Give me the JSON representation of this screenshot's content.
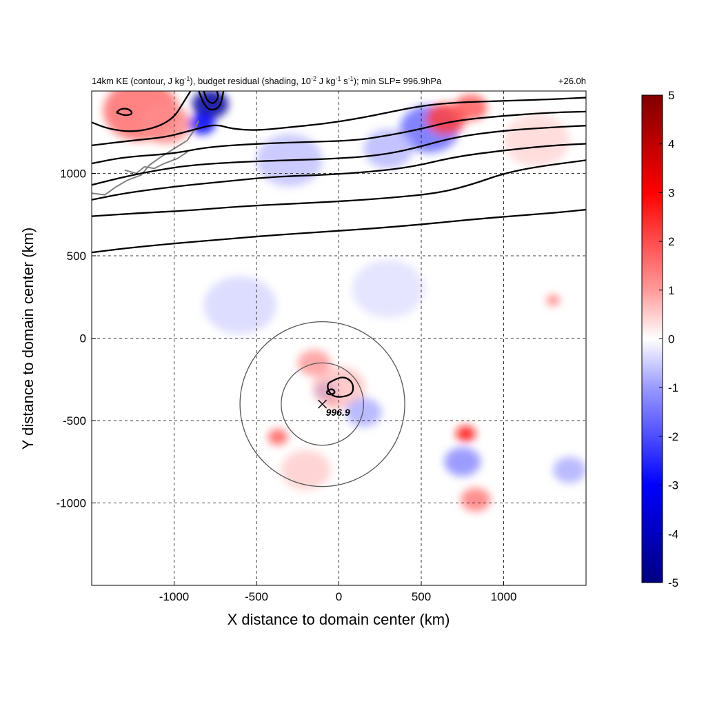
{
  "chart_data": {
    "type": "heatmap",
    "title": {
      "prefix": "14km KE (contour, J kg",
      "sup1": "-1",
      "mid1": "), budget residual (shading, 10",
      "sup2": "-2",
      "mid2": " J kg",
      "sup3": "-1",
      "mid3": " s",
      "sup4": "-1",
      "suffix": "); min SLP= 996.9hPa"
    },
    "time_label": "+26.0h",
    "xlabel": "X distance to domain center (km)",
    "ylabel": "Y distance to domain center (km)",
    "xlim": [
      -1500,
      1500
    ],
    "ylim": [
      -1500,
      1500
    ],
    "x_ticks": [
      -1000,
      -500,
      0,
      500,
      1000
    ],
    "x_tick_labels": [
      "-1000",
      "-500",
      "0",
      "500",
      "1000"
    ],
    "y_ticks": [
      -1000,
      -500,
      0,
      500,
      1000
    ],
    "y_tick_labels": [
      "-1000",
      "-500",
      "0",
      "500",
      "1000"
    ],
    "grid": true,
    "colorbar": {
      "range": [
        -5,
        5
      ],
      "ticks": [
        5,
        4,
        3,
        2,
        1,
        0,
        -1,
        -2,
        -3,
        -4,
        -5
      ],
      "tick_labels": [
        "5",
        "4",
        "3",
        "2",
        "1",
        "0",
        "-1",
        "-2",
        "-3",
        "-4",
        "-5"
      ],
      "colors": {
        "max": "#7f0000",
        "high": "#ff0000",
        "mid_high": "#ff9a9a",
        "zero": "#ffffff",
        "mid_low": "#9a9aff",
        "low": "#0000ff",
        "min": "#00007f"
      }
    },
    "storm_center": {
      "x": -100,
      "y": -400,
      "label": "996.9"
    },
    "range_rings_km": [
      250,
      500
    ],
    "ke_contours": [
      {
        "points": [
          [
            -1500,
            520
          ],
          [
            -1300,
            545
          ],
          [
            -1000,
            575
          ],
          [
            -700,
            600
          ],
          [
            -400,
            625
          ],
          [
            -100,
            645
          ],
          [
            200,
            665
          ],
          [
            500,
            690
          ],
          [
            800,
            720
          ],
          [
            1100,
            745
          ],
          [
            1300,
            760
          ],
          [
            1500,
            780
          ]
        ]
      },
      {
        "points": [
          [
            -1500,
            740
          ],
          [
            -1200,
            760
          ],
          [
            -900,
            775
          ],
          [
            -600,
            800
          ],
          [
            -300,
            815
          ],
          [
            0,
            830
          ],
          [
            300,
            850
          ],
          [
            600,
            880
          ],
          [
            800,
            930
          ],
          [
            1000,
            1000
          ],
          [
            1200,
            1040
          ],
          [
            1500,
            1080
          ]
        ]
      },
      {
        "points": [
          [
            -1500,
            840
          ],
          [
            -1300,
            880
          ],
          [
            -1000,
            920
          ],
          [
            -700,
            950
          ],
          [
            -400,
            980
          ],
          [
            -100,
            990
          ],
          [
            200,
            1010
          ],
          [
            450,
            1040
          ],
          [
            700,
            1100
          ],
          [
            1000,
            1140
          ],
          [
            1300,
            1170
          ],
          [
            1500,
            1180
          ]
        ]
      },
      {
        "points": [
          [
            -1500,
            930
          ],
          [
            -1300,
            980
          ],
          [
            -1100,
            1020
          ],
          [
            -900,
            1050
          ],
          [
            -600,
            1070
          ],
          [
            -300,
            1080
          ],
          [
            0,
            1090
          ],
          [
            250,
            1110
          ],
          [
            450,
            1150
          ],
          [
            700,
            1220
          ],
          [
            1000,
            1260
          ],
          [
            1300,
            1280
          ],
          [
            1500,
            1290
          ]
        ]
      },
      {
        "points": [
          [
            -1500,
            1060
          ],
          [
            -1300,
            1100
          ],
          [
            -1000,
            1120
          ],
          [
            -800,
            1160
          ],
          [
            -500,
            1180
          ],
          [
            -200,
            1190
          ],
          [
            100,
            1200
          ],
          [
            300,
            1230
          ],
          [
            500,
            1270
          ],
          [
            700,
            1320
          ],
          [
            1000,
            1350
          ],
          [
            1300,
            1370
          ],
          [
            1500,
            1375
          ]
        ]
      },
      {
        "points": [
          [
            -1500,
            1170
          ],
          [
            -1250,
            1200
          ],
          [
            -1050,
            1220
          ],
          [
            -900,
            1260
          ],
          [
            -750,
            1300
          ],
          [
            -650,
            1270
          ],
          [
            -500,
            1260
          ],
          [
            -300,
            1280
          ],
          [
            -100,
            1300
          ],
          [
            100,
            1330
          ],
          [
            300,
            1370
          ],
          [
            500,
            1410
          ],
          [
            700,
            1430
          ],
          [
            1000,
            1440
          ],
          [
            1300,
            1450
          ],
          [
            1500,
            1460
          ]
        ]
      },
      {
        "points": [
          [
            -1500,
            1310
          ],
          [
            -1400,
            1270
          ],
          [
            -1250,
            1250
          ],
          [
            -1100,
            1280
          ],
          [
            -1000,
            1340
          ],
          [
            -950,
            1420
          ],
          [
            -900,
            1500
          ]
        ]
      },
      {
        "points": [
          [
            -1350,
            1370
          ],
          [
            -1300,
            1350
          ],
          [
            -1250,
            1360
          ],
          [
            -1270,
            1390
          ],
          [
            -1320,
            1395
          ],
          [
            -1350,
            1370
          ]
        ]
      },
      {
        "points": [
          [
            -850,
            1500
          ],
          [
            -820,
            1420
          ],
          [
            -780,
            1380
          ],
          [
            -720,
            1400
          ],
          [
            -700,
            1500
          ]
        ]
      },
      {
        "points": [
          [
            -820,
            1500
          ],
          [
            -800,
            1440
          ],
          [
            -760,
            1420
          ],
          [
            -730,
            1460
          ],
          [
            -740,
            1500
          ]
        ]
      },
      {
        "points": [
          [
            -60,
            -270
          ],
          [
            20,
            -230
          ],
          [
            80,
            -260
          ],
          [
            90,
            -320
          ],
          [
            60,
            -350
          ],
          [
            -20,
            -360
          ],
          [
            -60,
            -330
          ],
          [
            -70,
            -290
          ],
          [
            -60,
            -270
          ]
        ]
      },
      {
        "points": [
          [
            -70,
            -320
          ],
          [
            -40,
            -305
          ],
          [
            -20,
            -330
          ],
          [
            -50,
            -345
          ],
          [
            -75,
            -335
          ],
          [
            -70,
            -320
          ]
        ]
      }
    ],
    "coastlines": [
      {
        "points": [
          [
            -1500,
            880
          ],
          [
            -1420,
            870
          ],
          [
            -1350,
            920
          ],
          [
            -1280,
            960
          ],
          [
            -1200,
            990
          ],
          [
            -1150,
            1050
          ],
          [
            -1080,
            1100
          ],
          [
            -1000,
            1150
          ],
          [
            -920,
            1200
          ],
          [
            -880,
            1260
          ],
          [
            -850,
            1320
          ]
        ]
      },
      {
        "points": [
          [
            -1300,
            1020
          ],
          [
            -1230,
            1000
          ],
          [
            -1180,
            1040
          ],
          [
            -1120,
            1030
          ],
          [
            -1060,
            1060
          ],
          [
            -980,
            1090
          ],
          [
            -920,
            1130
          ]
        ]
      }
    ],
    "residual_patches": [
      {
        "x": -1200,
        "y": 1380,
        "r": 230,
        "value": 1.6
      },
      {
        "x": -1050,
        "y": 1300,
        "r": 150,
        "value": 1.2
      },
      {
        "x": -780,
        "y": 1420,
        "r": 110,
        "value": -4.5
      },
      {
        "x": -830,
        "y": 1300,
        "r": 80,
        "value": -3.0
      },
      {
        "x": 550,
        "y": 1270,
        "r": 180,
        "value": -1.6
      },
      {
        "x": 650,
        "y": 1330,
        "r": 120,
        "value": 2.2
      },
      {
        "x": 800,
        "y": 1400,
        "r": 100,
        "value": 1.8
      },
      {
        "x": 300,
        "y": 1150,
        "r": 150,
        "value": -0.7
      },
      {
        "x": -300,
        "y": 1080,
        "r": 200,
        "value": -0.6
      },
      {
        "x": 1200,
        "y": 1200,
        "r": 200,
        "value": 0.4
      },
      {
        "x": -80,
        "y": -320,
        "r": 70,
        "value": -3.5
      },
      {
        "x": -40,
        "y": -390,
        "r": 40,
        "value": 3.5
      },
      {
        "x": 0,
        "y": -300,
        "r": 160,
        "value": 0.6
      },
      {
        "x": -150,
        "y": -150,
        "r": 100,
        "value": 1.0
      },
      {
        "x": 150,
        "y": -450,
        "r": 110,
        "value": -0.8
      },
      {
        "x": -370,
        "y": -600,
        "r": 60,
        "value": 1.8
      },
      {
        "x": 770,
        "y": -580,
        "r": 60,
        "value": 2.8
      },
      {
        "x": 830,
        "y": -980,
        "r": 90,
        "value": 1.4
      },
      {
        "x": 750,
        "y": -750,
        "r": 110,
        "value": -1.2
      },
      {
        "x": 1300,
        "y": 230,
        "r": 40,
        "value": 1.5
      },
      {
        "x": 1400,
        "y": -800,
        "r": 100,
        "value": -0.8
      },
      {
        "x": -600,
        "y": 200,
        "r": 220,
        "value": -0.4
      },
      {
        "x": 300,
        "y": 300,
        "r": 220,
        "value": -0.3
      },
      {
        "x": -200,
        "y": -800,
        "r": 150,
        "value": 0.5
      }
    ]
  }
}
